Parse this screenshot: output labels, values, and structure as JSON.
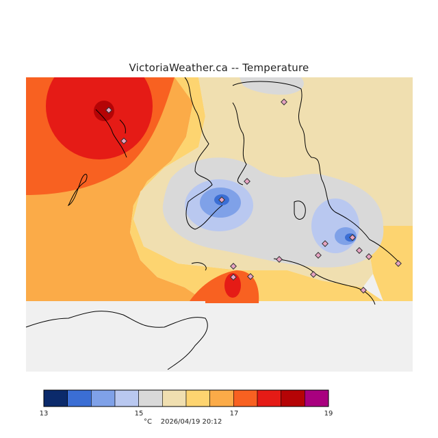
{
  "title": "VictoriaWeather.ca -- Temperature",
  "colorbar": {
    "colors": [
      "#0b2a6b",
      "#3b6ed4",
      "#7fa1e8",
      "#b9c8f0",
      "#d9d9d9",
      "#f0dfb0",
      "#fdd470",
      "#fbab48",
      "#f86121",
      "#e51b16",
      "#b50406",
      "#a9007f"
    ],
    "tick_labels": [
      "13",
      "15",
      "17",
      "19"
    ],
    "unit": "°C",
    "timestamp": "2026/04/19 20:12"
  }
}
